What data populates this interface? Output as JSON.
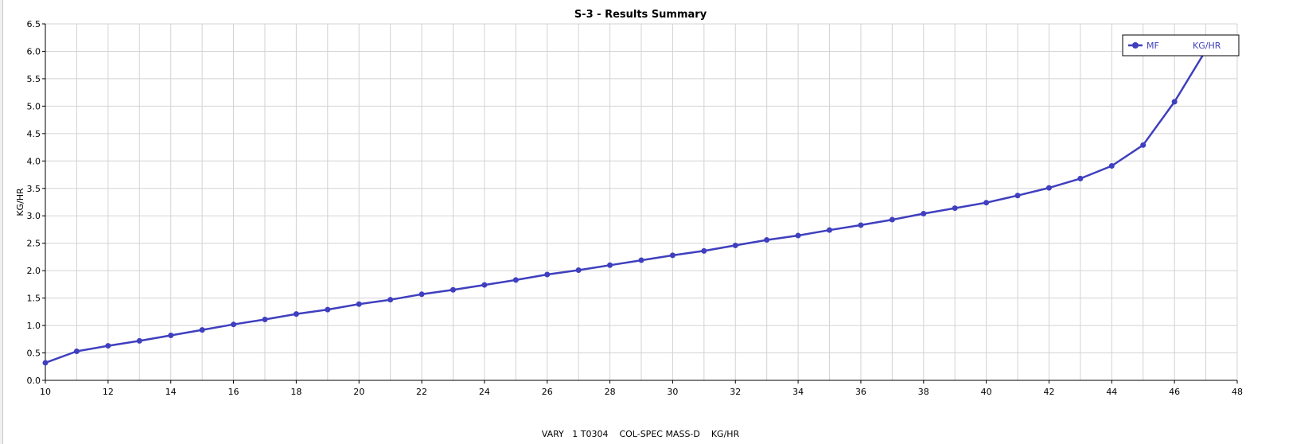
{
  "chart_data": {
    "type": "line",
    "title": "S-3 - Results Summary",
    "xlabel": "VARY   1 T0304    COL-SPEC MASS-D    KG/HR",
    "ylabel": "KG/HR",
    "xlim": [
      10,
      48
    ],
    "ylim": [
      0,
      6.5
    ],
    "x_ticks": [
      10,
      12,
      14,
      16,
      18,
      20,
      22,
      24,
      26,
      28,
      30,
      32,
      34,
      36,
      38,
      40,
      42,
      44,
      46,
      48
    ],
    "y_ticks": [
      0,
      0.5,
      1,
      1.5,
      2,
      2.5,
      3,
      3.5,
      4,
      4.5,
      5,
      5.5,
      6,
      6.5
    ],
    "y_tick_labels": [
      "0.0",
      "0.5",
      "1.0",
      "1.5",
      "2.0",
      "2.5",
      "3.0",
      "3.5",
      "4.0",
      "4.5",
      "5.0",
      "5.5",
      "6.0",
      "6.5"
    ],
    "grid": true,
    "legend_position": "top-right",
    "series": [
      {
        "name": "MF",
        "unit": "KG/HR",
        "color": "#3f3fbf",
        "x": [
          10,
          11,
          12,
          13,
          14,
          15,
          16,
          17,
          18,
          19,
          20,
          21,
          22,
          23,
          24,
          25,
          26,
          27,
          28,
          29,
          30,
          31,
          32,
          33,
          34,
          35,
          36,
          37,
          38,
          39,
          40,
          41,
          42,
          43,
          44,
          45,
          46,
          47
        ],
        "y": [
          0.32,
          0.53,
          0.63,
          0.72,
          0.82,
          0.92,
          1.02,
          1.11,
          1.21,
          1.29,
          1.39,
          1.47,
          1.57,
          1.65,
          1.74,
          1.83,
          1.93,
          2.01,
          2.1,
          2.19,
          2.28,
          2.36,
          2.46,
          2.56,
          2.64,
          2.74,
          2.83,
          2.93,
          3.04,
          3.14,
          3.24,
          3.37,
          3.51,
          3.68,
          3.91,
          4.29,
          5.08,
          6.02
        ]
      }
    ],
    "colors": {
      "line": "#3f3fbf",
      "grid": "#d3d3d3",
      "axis": "#000000",
      "left_strip": "#f0f0f0"
    }
  }
}
